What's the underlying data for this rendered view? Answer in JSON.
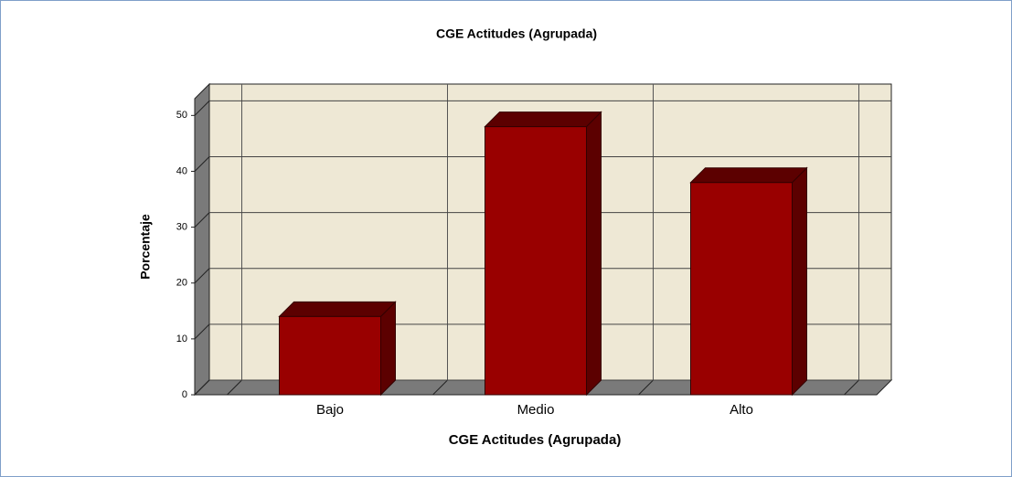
{
  "chart_data": {
    "type": "bar3d",
    "title": "CGE Actitudes (Agrupada)",
    "x_label": "CGE Actitudes (Agrupada)",
    "y_label": "Porcentaje",
    "categories": [
      "Bajo",
      "Medio",
      "Alto"
    ],
    "values": [
      14,
      48,
      38
    ],
    "color": "#990000",
    "side_color": "#5c0000",
    "ylim": [
      0,
      53
    ],
    "yticks": [
      0,
      10,
      20,
      30,
      40,
      50
    ],
    "grid": true
  }
}
